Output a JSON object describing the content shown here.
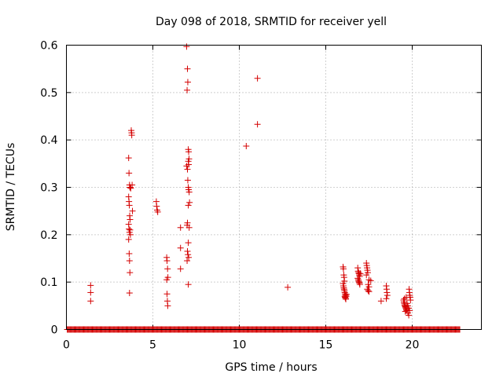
{
  "chart_data": {
    "type": "scatter",
    "title": "Day 098 of 2018, SRMTID for receiver yell",
    "xlabel": "GPS time / hours",
    "ylabel": "SRMTID / TECUs",
    "xlim": [
      0,
      24
    ],
    "ylim": [
      0,
      0.6
    ],
    "xticks": [
      0,
      5,
      10,
      15,
      20
    ],
    "yticks": [
      0,
      0.1,
      0.2,
      0.3,
      0.4,
      0.5,
      0.6
    ],
    "xtick_labels": [
      "0",
      "5",
      "10",
      "15",
      "20"
    ],
    "ytick_labels": [
      "0",
      "0.1",
      "0.2",
      "0.3",
      "0.4",
      "0.5",
      "0.6"
    ],
    "grid": true,
    "marker": "+",
    "marker_color": "#d40000",
    "series": [
      {
        "name": "SRMTID",
        "baseline": {
          "x_start": 0.05,
          "x_end": 22.75,
          "step": 0.05,
          "y": 0
        },
        "points": [
          [
            1.4,
            0.093
          ],
          [
            1.4,
            0.078
          ],
          [
            1.4,
            0.06
          ],
          [
            3.6,
            0.362
          ],
          [
            3.62,
            0.33
          ],
          [
            3.65,
            0.305
          ],
          [
            3.67,
            0.3
          ],
          [
            3.7,
            0.3
          ],
          [
            3.72,
            0.298
          ],
          [
            3.6,
            0.28
          ],
          [
            3.62,
            0.27
          ],
          [
            3.64,
            0.262
          ],
          [
            3.66,
            0.24
          ],
          [
            3.68,
            0.232
          ],
          [
            3.6,
            0.222
          ],
          [
            3.62,
            0.212
          ],
          [
            3.65,
            0.205
          ],
          [
            3.68,
            0.21
          ],
          [
            3.7,
            0.2
          ],
          [
            3.6,
            0.19
          ],
          [
            3.63,
            0.16
          ],
          [
            3.65,
            0.145
          ],
          [
            3.67,
            0.12
          ],
          [
            3.65,
            0.077
          ],
          [
            3.75,
            0.42
          ],
          [
            3.77,
            0.415
          ],
          [
            3.78,
            0.41
          ],
          [
            3.8,
            0.305
          ],
          [
            3.82,
            0.25
          ],
          [
            5.2,
            0.27
          ],
          [
            5.22,
            0.26
          ],
          [
            5.25,
            0.252
          ],
          [
            5.28,
            0.248
          ],
          [
            5.8,
            0.152
          ],
          [
            5.82,
            0.145
          ],
          [
            5.85,
            0.128
          ],
          [
            5.87,
            0.11
          ],
          [
            5.8,
            0.105
          ],
          [
            5.82,
            0.075
          ],
          [
            5.84,
            0.06
          ],
          [
            5.86,
            0.05
          ],
          [
            6.6,
            0.215
          ],
          [
            6.6,
            0.172
          ],
          [
            6.6,
            0.128
          ],
          [
            6.95,
            0.597
          ],
          [
            7.0,
            0.55
          ],
          [
            7.02,
            0.522
          ],
          [
            6.98,
            0.505
          ],
          [
            7.05,
            0.38
          ],
          [
            7.07,
            0.375
          ],
          [
            7.09,
            0.36
          ],
          [
            7.05,
            0.355
          ],
          [
            7.07,
            0.348
          ],
          [
            6.95,
            0.345
          ],
          [
            7.0,
            0.338
          ],
          [
            7.02,
            0.315
          ],
          [
            7.05,
            0.3
          ],
          [
            7.07,
            0.295
          ],
          [
            7.1,
            0.29
          ],
          [
            7.12,
            0.268
          ],
          [
            7.05,
            0.262
          ],
          [
            7.0,
            0.225
          ],
          [
            6.98,
            0.22
          ],
          [
            7.1,
            0.215
          ],
          [
            7.05,
            0.183
          ],
          [
            7.0,
            0.165
          ],
          [
            7.03,
            0.158
          ],
          [
            7.07,
            0.152
          ],
          [
            6.98,
            0.145
          ],
          [
            7.05,
            0.095
          ],
          [
            10.4,
            0.387
          ],
          [
            11.05,
            0.53
          ],
          [
            11.05,
            0.433
          ],
          [
            12.8,
            0.089
          ],
          [
            16.0,
            0.132
          ],
          [
            16.02,
            0.128
          ],
          [
            16.04,
            0.115
          ],
          [
            16.06,
            0.11
          ],
          [
            16.08,
            0.102
          ],
          [
            16.0,
            0.097
          ],
          [
            16.02,
            0.092
          ],
          [
            16.04,
            0.088
          ],
          [
            16.06,
            0.085
          ],
          [
            16.08,
            0.082
          ],
          [
            16.1,
            0.078
          ],
          [
            16.12,
            0.075
          ],
          [
            16.14,
            0.072
          ],
          [
            16.1,
            0.07
          ],
          [
            16.12,
            0.068
          ],
          [
            16.14,
            0.066
          ],
          [
            16.16,
            0.064
          ],
          [
            16.18,
            0.07
          ],
          [
            16.2,
            0.074
          ],
          [
            16.85,
            0.13
          ],
          [
            16.87,
            0.123
          ],
          [
            16.9,
            0.12
          ],
          [
            16.92,
            0.118
          ],
          [
            16.94,
            0.115
          ],
          [
            16.96,
            0.112
          ],
          [
            16.85,
            0.108
          ],
          [
            16.88,
            0.105
          ],
          [
            16.9,
            0.102
          ],
          [
            16.93,
            0.1
          ],
          [
            16.95,
            0.098
          ],
          [
            16.97,
            0.095
          ],
          [
            17.0,
            0.118
          ],
          [
            17.35,
            0.14
          ],
          [
            17.37,
            0.135
          ],
          [
            17.39,
            0.13
          ],
          [
            17.41,
            0.125
          ],
          [
            17.43,
            0.12
          ],
          [
            17.35,
            0.115
          ],
          [
            17.5,
            0.105
          ],
          [
            17.6,
            0.103
          ],
          [
            17.45,
            0.095
          ],
          [
            17.5,
            0.09
          ],
          [
            17.4,
            0.085
          ],
          [
            17.45,
            0.082
          ],
          [
            17.5,
            0.08
          ],
          [
            18.2,
            0.06
          ],
          [
            18.5,
            0.092
          ],
          [
            18.52,
            0.085
          ],
          [
            18.54,
            0.078
          ],
          [
            18.56,
            0.072
          ],
          [
            18.5,
            0.065
          ],
          [
            19.5,
            0.062
          ],
          [
            19.52,
            0.058
          ],
          [
            19.54,
            0.055
          ],
          [
            19.56,
            0.052
          ],
          [
            19.58,
            0.05
          ],
          [
            19.6,
            0.048
          ],
          [
            19.62,
            0.046
          ],
          [
            19.64,
            0.044
          ],
          [
            19.66,
            0.042
          ],
          [
            19.68,
            0.04
          ],
          [
            19.55,
            0.065
          ],
          [
            19.65,
            0.068
          ],
          [
            19.7,
            0.055
          ],
          [
            19.75,
            0.05
          ],
          [
            19.8,
            0.045
          ],
          [
            19.85,
            0.04
          ],
          [
            19.82,
            0.085
          ],
          [
            19.84,
            0.078
          ],
          [
            19.86,
            0.072
          ],
          [
            19.88,
            0.068
          ],
          [
            19.9,
            0.062
          ],
          [
            19.75,
            0.035
          ],
          [
            19.8,
            0.03
          ],
          [
            19.6,
            0.038
          ]
        ]
      }
    ]
  }
}
